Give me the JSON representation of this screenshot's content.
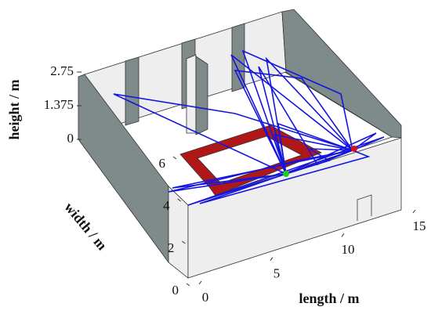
{
  "chart_data": {
    "type": "room-3d",
    "xlabel": "length / m",
    "ylabel": "width / m",
    "zlabel": "height / m",
    "xlim": [
      0,
      15
    ],
    "ylim": [
      0,
      6
    ],
    "zlim": [
      0,
      2.75
    ],
    "xticks": [
      0,
      5,
      10,
      15
    ],
    "yticks": [
      0,
      2,
      4,
      6
    ],
    "zticks": [
      0,
      1.375,
      2.75
    ]
  }
}
